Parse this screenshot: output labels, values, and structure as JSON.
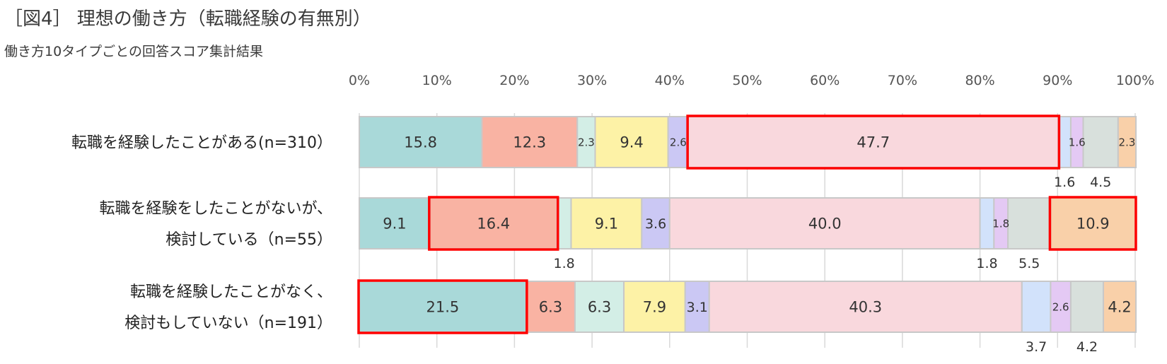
{
  "title": "［図4］ 理想の働き方（転職経験の有無別）",
  "subtitle": "働き方10タイプごとの回答スコア集計結果",
  "chart_data": {
    "type": "bar",
    "orientation": "horizontal",
    "stacked": "100%",
    "title": "［図4］ 理想の働き方（転職経験の有無別）",
    "subtitle": "働き方10タイプごとの回答スコア集計結果",
    "xlim": [
      0,
      100
    ],
    "x_ticks": [
      "0%",
      "10%",
      "20%",
      "30%",
      "40%",
      "50%",
      "60%",
      "70%",
      "80%",
      "90%",
      "100%"
    ],
    "grid": "vertical",
    "categories": [
      [
        "転職を経験したことがある(n=310）"
      ],
      [
        "転職を経験をしたことがないが、",
        "検討している（n=55）"
      ],
      [
        "転職を経験したことがなく、",
        "検討もしていない（n=191）"
      ]
    ],
    "colors": [
      "#a9d9d9",
      "#f9b3a3",
      "#d3eee6",
      "#fdf2a6",
      "#cbc8f4",
      "#f9d8dd",
      "#d2e2fb",
      "#e4c9f4",
      "#d8e0dc",
      "#f9d0a9"
    ],
    "rows": [
      {
        "values": [
          15.8,
          12.3,
          2.3,
          9.4,
          2.6,
          47.7,
          1.6,
          1.6,
          4.5,
          2.3
        ],
        "labels": [
          "15.8",
          "12.3",
          "2.3",
          "9.4",
          "2.6",
          "47.7",
          "",
          "1.6",
          "",
          "2.3"
        ],
        "outside_labels": [
          "",
          "",
          "",
          "",
          "",
          "",
          "1.6",
          "",
          "4.5",
          ""
        ],
        "highlight": [
          [
            5,
            5
          ]
        ]
      },
      {
        "values": [
          9.1,
          16.4,
          1.8,
          9.1,
          3.6,
          40.0,
          1.8,
          1.8,
          5.5,
          10.9
        ],
        "labels": [
          "9.1",
          "16.4",
          "",
          "9.1",
          "3.6",
          "40.0",
          "",
          "1.8",
          "",
          "10.9"
        ],
        "outside_labels": [
          "",
          "",
          "1.8",
          "",
          "",
          "",
          "1.8",
          "",
          "5.5",
          ""
        ],
        "highlight": [
          [
            1,
            1
          ],
          [
            9,
            9
          ]
        ]
      },
      {
        "values": [
          21.5,
          6.3,
          6.3,
          7.9,
          3.1,
          40.3,
          3.7,
          2.6,
          4.2,
          4.2
        ],
        "labels": [
          "21.5",
          "6.3",
          "6.3",
          "7.9",
          "3.1",
          "40.3",
          "",
          "2.6",
          "",
          "4.2"
        ],
        "outside_labels": [
          "",
          "",
          "",
          "",
          "",
          "",
          "3.7",
          "",
          "4.2",
          ""
        ],
        "highlight": [
          [
            0,
            0
          ]
        ]
      }
    ]
  }
}
